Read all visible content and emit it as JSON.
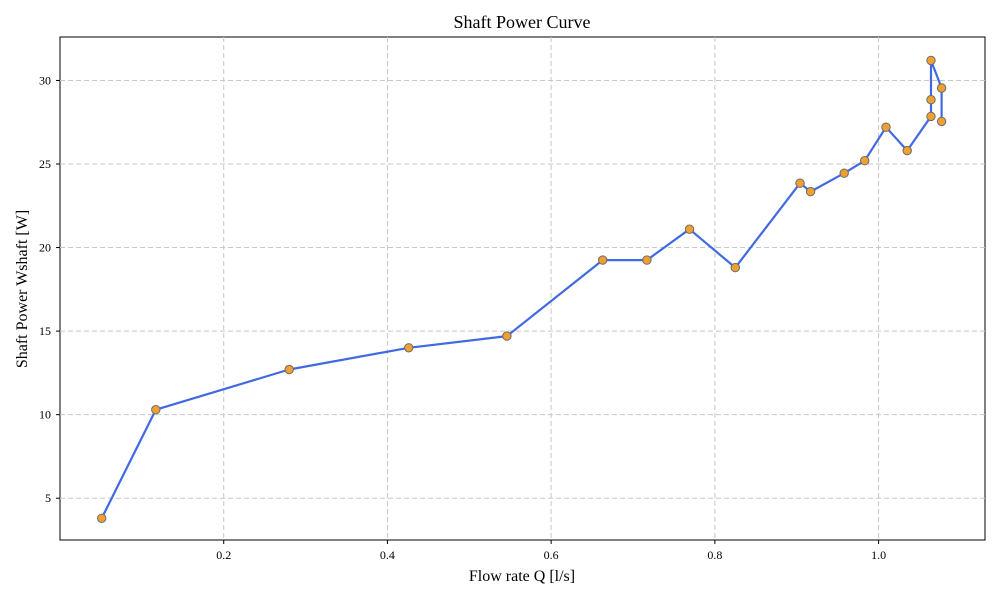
{
  "chart_data": {
    "type": "line",
    "title": "Shaft Power Curve",
    "xlabel": "Flow rate Q [l/s]",
    "ylabel": "Shaft Power Wshaft [W]",
    "xlim": [
      0.0,
      1.13
    ],
    "ylim": [
      2.5,
      32.6
    ],
    "xticks": [
      0.2,
      0.4,
      0.6,
      0.8,
      1.0
    ],
    "xtick_labels": [
      "0.2",
      "0.4",
      "0.6",
      "0.8",
      "1.0"
    ],
    "yticks": [
      5,
      10,
      15,
      20,
      25,
      30
    ],
    "ytick_labels": [
      "5",
      "10",
      "15",
      "20",
      "25",
      "30"
    ],
    "grid": true,
    "line_color": "#4169e1",
    "marker_color": "#f0a030",
    "series": [
      {
        "x": [
          0.051,
          0.117,
          0.28,
          0.426,
          0.546,
          0.663,
          0.717,
          0.769,
          0.825,
          0.904,
          0.917,
          0.958,
          0.983,
          1.009,
          1.035,
          1.064,
          1.064,
          1.064,
          1.077,
          1.077
        ],
        "y": [
          3.8,
          10.3,
          12.7,
          14.0,
          14.7,
          19.25,
          19.25,
          21.1,
          18.8,
          23.85,
          23.35,
          24.45,
          25.2,
          27.2,
          25.8,
          27.85,
          28.85,
          31.2,
          29.55,
          27.55
        ]
      }
    ]
  }
}
